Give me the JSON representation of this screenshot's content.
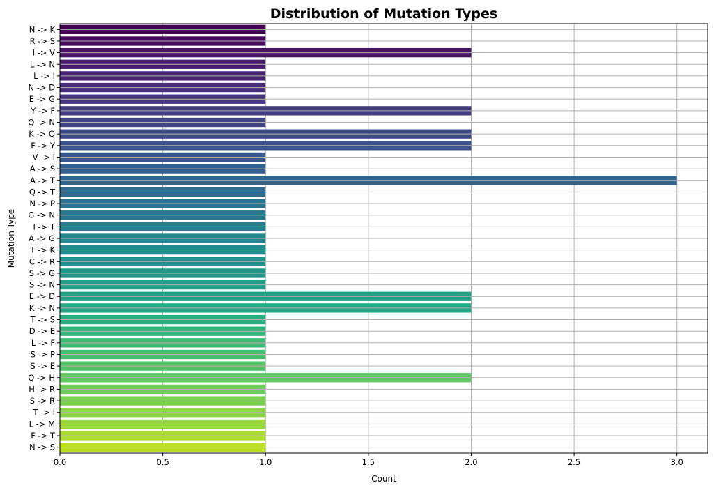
{
  "chart_data": {
    "type": "bar",
    "orientation": "horizontal",
    "title": "Distribution of Mutation Types",
    "xlabel": "Count",
    "ylabel": "Mutation Type",
    "xlim": [
      0,
      3.15
    ],
    "xticks": [
      0.0,
      0.5,
      1.0,
      1.5,
      2.0,
      2.5,
      3.0
    ],
    "xtick_labels": [
      "0.0",
      "0.5",
      "1.0",
      "1.5",
      "2.0",
      "2.5",
      "3.0"
    ],
    "grid": true,
    "palette": "viridis",
    "palette_start": "#440154",
    "palette_end": "#d8e219",
    "categories": [
      "N -> K",
      "R -> S",
      "I -> V",
      "L -> N",
      "L -> I",
      "N -> D",
      "E -> G",
      "Y -> F",
      "Q -> N",
      "K -> Q",
      "F -> Y",
      "V -> I",
      "A -> S",
      "A -> T",
      "Q -> T",
      "N -> P",
      "G -> N",
      "I -> T",
      "A -> G",
      "T -> K",
      "C -> R",
      "S -> G",
      "S -> N",
      "E -> D",
      "K -> N",
      "T -> S",
      "D -> E",
      "L -> F",
      "S -> P",
      "S -> E",
      "Q -> H",
      "H -> R",
      "S -> R",
      "T -> I",
      "L -> M",
      "F -> T",
      "N -> S"
    ],
    "values": [
      1,
      1,
      2,
      1,
      1,
      1,
      1,
      2,
      1,
      2,
      2,
      1,
      1,
      3,
      1,
      1,
      1,
      1,
      1,
      1,
      1,
      1,
      1,
      2,
      2,
      1,
      1,
      1,
      1,
      1,
      2,
      1,
      1,
      1,
      1,
      1,
      1
    ]
  }
}
